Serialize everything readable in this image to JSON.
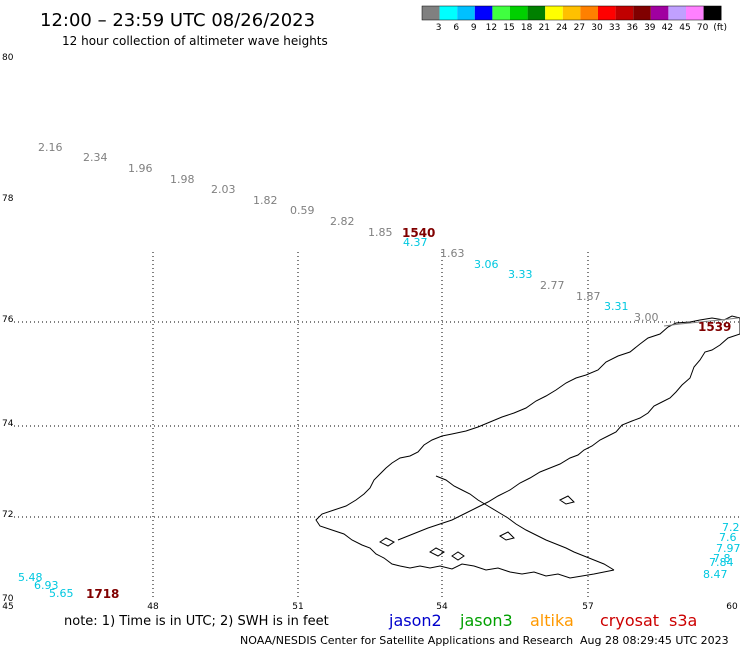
{
  "header": {
    "title": "12:00 – 23:59 UTC 08/26/2023",
    "subtitle": "12 hour collection of altimeter wave heights"
  },
  "color_scale": {
    "colors": [
      "#808080",
      "#00ffff",
      "#00c0ff",
      "#0000ff",
      "#40ff40",
      "#00d000",
      "#008000",
      "#ffff00",
      "#ffc000",
      "#ff8000",
      "#ff0000",
      "#c00000",
      "#800000",
      "#a000a0",
      "#c0a0ff",
      "#ff80ff",
      "#000000"
    ],
    "labels": [
      "3",
      "6",
      "9",
      "12",
      "15",
      "18",
      "21",
      "24",
      "27",
      "30",
      "33",
      "36",
      "39",
      "42",
      "45",
      "70",
      "(ft)"
    ]
  },
  "axes": {
    "lat_labels": [
      "80",
      "78",
      "76",
      "74",
      "72",
      "70"
    ],
    "lon_labels": [
      "45",
      "48",
      "51",
      "54",
      "57",
      "60"
    ]
  },
  "observations": [
    {
      "text": "2.16",
      "color": "#808080"
    },
    {
      "text": "2.34",
      "color": "#808080"
    },
    {
      "text": "1.96",
      "color": "#808080"
    },
    {
      "text": "1.98",
      "color": "#808080"
    },
    {
      "text": "2.03",
      "color": "#808080"
    },
    {
      "text": "1.82",
      "color": "#808080"
    },
    {
      "text": "0.59",
      "color": "#808080"
    },
    {
      "text": "2.82",
      "color": "#808080"
    },
    {
      "text": "1.85",
      "color": "#808080"
    },
    {
      "text": "4.37",
      "color": "#00c8e0"
    },
    {
      "text": "1.63",
      "color": "#808080"
    },
    {
      "text": "3.06",
      "color": "#00c8e0"
    },
    {
      "text": "3.33",
      "color": "#00c8e0"
    },
    {
      "text": "2.77",
      "color": "#808080"
    },
    {
      "text": "1.87",
      "color": "#808080"
    },
    {
      "text": "3.31",
      "color": "#00c8e0"
    },
    {
      "text": "3.00",
      "color": "#808080"
    },
    {
      "text": "5.48",
      "color": "#00c8e0"
    },
    {
      "text": "6.93",
      "color": "#00c8e0"
    },
    {
      "text": "5.65",
      "color": "#00c8e0"
    },
    {
      "text": "7.2",
      "color": "#00c8e0"
    },
    {
      "text": "7.6",
      "color": "#00c8e0"
    },
    {
      "text": "7.97",
      "color": "#00c8e0"
    },
    {
      "text": "7.8",
      "color": "#00c8e0"
    },
    {
      "text": "7.84",
      "color": "#00c8e0"
    },
    {
      "text": "8.47",
      "color": "#00c8e0"
    }
  ],
  "pass_times": [
    "1540",
    "1539",
    "1718"
  ],
  "footer": {
    "note": "note: 1) Time is in UTC; 2) SWH is in feet",
    "satellites": [
      {
        "name": "jason2",
        "color": "#0000cc"
      },
      {
        "name": "jason3",
        "color": "#00a000"
      },
      {
        "name": "altika",
        "color": "#ff9900"
      },
      {
        "name": "cryosat",
        "color": "#cc0000"
      },
      {
        "name": "s3a",
        "color": "#cc0000"
      }
    ],
    "credit": "NOAA/NESDIS Center for Satellite Applications and Research",
    "timestamp": "Aug 28 08:29:45 UTC 2023"
  }
}
